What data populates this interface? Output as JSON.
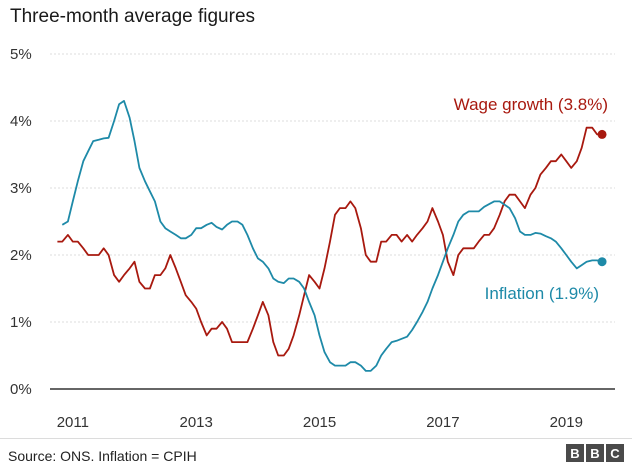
{
  "title": "Three-month average figures",
  "source": "Source: ONS. Inflation = CPIH",
  "logo": {
    "letters": [
      "B",
      "B",
      "C"
    ]
  },
  "colors": {
    "wage": "#a8190f",
    "inflation": "#1e8aa8",
    "axis": "#333333"
  },
  "chart_data": {
    "type": "line",
    "ylim": [
      0,
      5
    ],
    "yticks": [
      0,
      1,
      2,
      3,
      4,
      5
    ],
    "ytick_labels": [
      "0%",
      "1%",
      "2%",
      "3%",
      "4%",
      "5%"
    ],
    "xlim": [
      2010.63,
      2019.79
    ],
    "xticks": [
      2011,
      2013,
      2015,
      2017,
      2019
    ],
    "xtick_labels": [
      "2011",
      "2013",
      "2015",
      "2017",
      "2019"
    ],
    "grid": "horizontal",
    "series": [
      {
        "name": "Wage growth (3.8%)",
        "color": "#a8190f",
        "end_marker": true,
        "x": [
          2010.75,
          2010.83,
          2010.92,
          2011.0,
          2011.08,
          2011.17,
          2011.25,
          2011.33,
          2011.42,
          2011.5,
          2011.58,
          2011.67,
          2011.75,
          2011.83,
          2011.92,
          2012.0,
          2012.08,
          2012.17,
          2012.25,
          2012.33,
          2012.42,
          2012.5,
          2012.58,
          2012.67,
          2012.75,
          2012.83,
          2012.92,
          2013.0,
          2013.08,
          2013.17,
          2013.25,
          2013.33,
          2013.42,
          2013.5,
          2013.58,
          2013.67,
          2013.75,
          2013.83,
          2013.92,
          2014.0,
          2014.08,
          2014.17,
          2014.25,
          2014.33,
          2014.42,
          2014.5,
          2014.58,
          2014.67,
          2014.75,
          2014.83,
          2014.92,
          2015.0,
          2015.08,
          2015.17,
          2015.25,
          2015.33,
          2015.42,
          2015.5,
          2015.58,
          2015.67,
          2015.75,
          2015.83,
          2015.92,
          2016.0,
          2016.08,
          2016.17,
          2016.25,
          2016.33,
          2016.42,
          2016.5,
          2016.58,
          2016.67,
          2016.75,
          2016.83,
          2016.92,
          2017.0,
          2017.08,
          2017.17,
          2017.25,
          2017.33,
          2017.42,
          2017.5,
          2017.58,
          2017.67,
          2017.75,
          2017.83,
          2017.92,
          2018.0,
          2018.08,
          2018.17,
          2018.25,
          2018.33,
          2018.42,
          2018.5,
          2018.58,
          2018.67,
          2018.75,
          2018.83,
          2018.92,
          2019.0,
          2019.08,
          2019.17,
          2019.25,
          2019.33,
          2019.42,
          2019.5,
          2019.58
        ],
        "y": [
          2.2,
          2.2,
          2.3,
          2.2,
          2.2,
          2.1,
          2.0,
          2.0,
          2.0,
          2.1,
          2.0,
          1.7,
          1.6,
          1.7,
          1.8,
          1.9,
          1.6,
          1.5,
          1.5,
          1.7,
          1.7,
          1.8,
          2.0,
          1.8,
          1.6,
          1.4,
          1.3,
          1.2,
          1.0,
          0.8,
          0.9,
          0.9,
          1.0,
          0.9,
          0.7,
          0.7,
          0.7,
          0.7,
          0.9,
          1.1,
          1.3,
          1.1,
          0.7,
          0.5,
          0.5,
          0.6,
          0.8,
          1.1,
          1.4,
          1.7,
          1.6,
          1.5,
          1.8,
          2.2,
          2.6,
          2.7,
          2.7,
          2.8,
          2.7,
          2.4,
          2.0,
          1.9,
          1.9,
          2.2,
          2.2,
          2.3,
          2.3,
          2.2,
          2.3,
          2.2,
          2.3,
          2.4,
          2.5,
          2.7,
          2.5,
          2.3,
          1.9,
          1.7,
          2.0,
          2.1,
          2.1,
          2.1,
          2.2,
          2.3,
          2.3,
          2.4,
          2.6,
          2.8,
          2.9,
          2.9,
          2.8,
          2.7,
          2.9,
          3.0,
          3.2,
          3.3,
          3.4,
          3.4,
          3.5,
          3.4,
          3.3,
          3.4,
          3.6,
          3.9,
          3.9,
          3.8,
          3.8
        ]
      },
      {
        "name": "Inflation (1.9%)",
        "color": "#1e8aa8",
        "end_marker": true,
        "x": [
          2010.83,
          2010.92,
          2011.0,
          2011.08,
          2011.17,
          2011.25,
          2011.33,
          2011.42,
          2011.5,
          2011.58,
          2011.67,
          2011.75,
          2011.83,
          2011.92,
          2012.0,
          2012.08,
          2012.17,
          2012.25,
          2012.33,
          2012.42,
          2012.5,
          2012.58,
          2012.67,
          2012.75,
          2012.83,
          2012.92,
          2013.0,
          2013.08,
          2013.17,
          2013.25,
          2013.33,
          2013.42,
          2013.5,
          2013.58,
          2013.67,
          2013.75,
          2013.83,
          2013.92,
          2014.0,
          2014.08,
          2014.17,
          2014.25,
          2014.33,
          2014.42,
          2014.5,
          2014.58,
          2014.67,
          2014.75,
          2014.83,
          2014.92,
          2015.0,
          2015.08,
          2015.17,
          2015.25,
          2015.33,
          2015.42,
          2015.5,
          2015.58,
          2015.67,
          2015.75,
          2015.83,
          2015.92,
          2016.0,
          2016.08,
          2016.17,
          2016.25,
          2016.33,
          2016.42,
          2016.5,
          2016.58,
          2016.67,
          2016.75,
          2016.83,
          2016.92,
          2017.0,
          2017.08,
          2017.17,
          2017.25,
          2017.33,
          2017.42,
          2017.5,
          2017.58,
          2017.67,
          2017.75,
          2017.83,
          2017.92,
          2018.0,
          2018.08,
          2018.17,
          2018.25,
          2018.33,
          2018.42,
          2018.5,
          2018.58,
          2018.67,
          2018.75,
          2018.83,
          2018.92,
          2019.0,
          2019.08,
          2019.17,
          2019.25,
          2019.33,
          2019.42,
          2019.5,
          2019.58
        ],
        "y": [
          2.45,
          2.5,
          2.8,
          3.1,
          3.4,
          3.55,
          3.7,
          3.72,
          3.74,
          3.75,
          4.0,
          4.25,
          4.3,
          4.05,
          3.7,
          3.3,
          3.1,
          2.95,
          2.8,
          2.5,
          2.4,
          2.35,
          2.3,
          2.25,
          2.25,
          2.3,
          2.4,
          2.4,
          2.45,
          2.48,
          2.42,
          2.38,
          2.45,
          2.5,
          2.5,
          2.45,
          2.3,
          2.1,
          1.95,
          1.9,
          1.8,
          1.65,
          1.6,
          1.58,
          1.65,
          1.65,
          1.6,
          1.5,
          1.3,
          1.1,
          0.8,
          0.55,
          0.4,
          0.35,
          0.35,
          0.35,
          0.4,
          0.4,
          0.35,
          0.27,
          0.27,
          0.35,
          0.5,
          0.6,
          0.7,
          0.72,
          0.75,
          0.78,
          0.88,
          1.0,
          1.15,
          1.3,
          1.5,
          1.7,
          1.9,
          2.1,
          2.3,
          2.5,
          2.6,
          2.65,
          2.65,
          2.65,
          2.72,
          2.76,
          2.8,
          2.8,
          2.75,
          2.7,
          2.55,
          2.35,
          2.3,
          2.3,
          2.33,
          2.32,
          2.28,
          2.25,
          2.2,
          2.1,
          2.0,
          1.9,
          1.8,
          1.85,
          1.9,
          1.92,
          1.92,
          1.9
        ]
      }
    ],
    "annotations": [
      {
        "text": "Wage growth (3.8%)",
        "series": 0
      },
      {
        "text": "Inflation (1.9%)",
        "series": 1
      }
    ]
  }
}
